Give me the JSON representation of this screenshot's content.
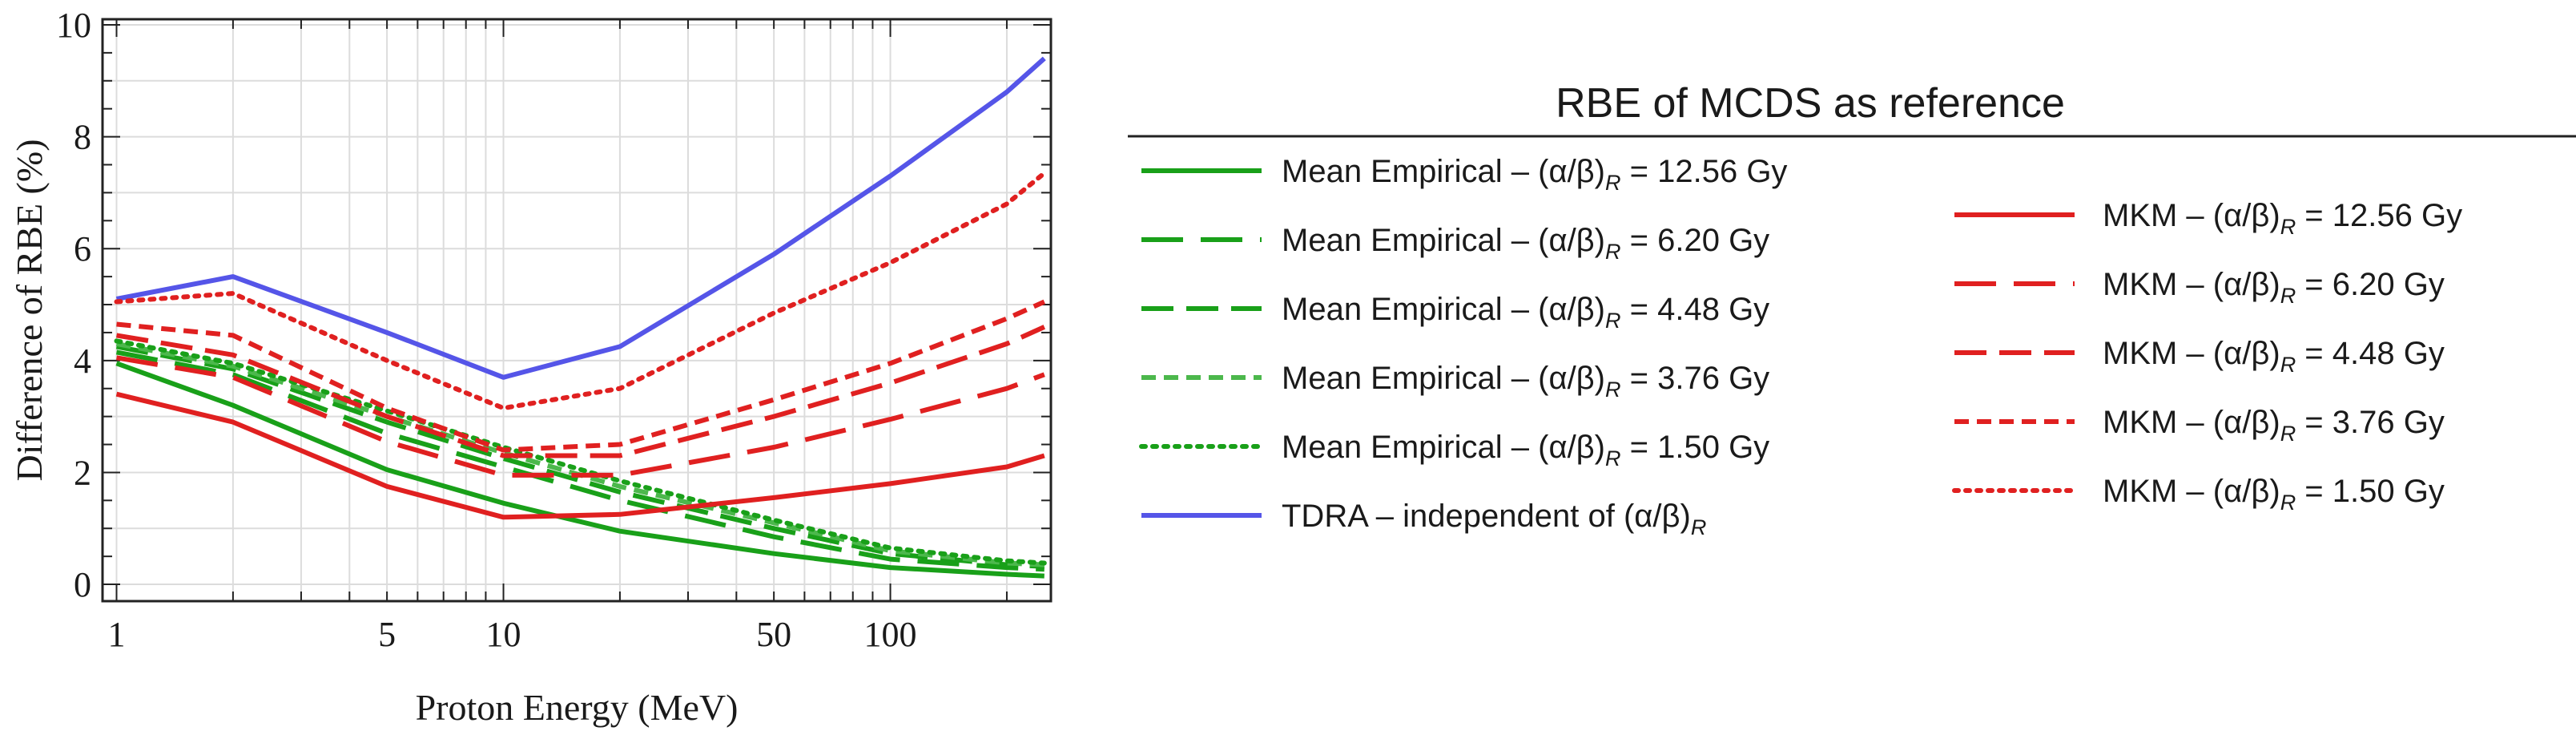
{
  "chart_data": {
    "type": "line",
    "title": "",
    "xlabel": "Proton Energy (MeV)",
    "ylabel": "Difference  of RBE (%)",
    "xscale": "log",
    "xlim": [
      0.92,
      260
    ],
    "ylim": [
      -0.3,
      10.1
    ],
    "xticks": [
      {
        "value": 1,
        "label": "1"
      },
      {
        "value": 5,
        "label": "5"
      },
      {
        "value": 10,
        "label": "10"
      },
      {
        "value": 50,
        "label": "50"
      },
      {
        "value": 100,
        "label": "100"
      }
    ],
    "yticks": [
      {
        "value": 0,
        "label": "0"
      },
      {
        "value": 2,
        "label": "2"
      },
      {
        "value": 4,
        "label": "4"
      },
      {
        "value": 6,
        "label": "6"
      },
      {
        "value": 8,
        "label": "8"
      },
      {
        "value": 10,
        "label": "10"
      }
    ],
    "grid": true,
    "legend_title": "RBE of MCDS as reference",
    "legend_placement": "right",
    "x": [
      1,
      2,
      5,
      10,
      20,
      50,
      100,
      200,
      250
    ],
    "series": [
      {
        "name": "ME 12.56",
        "label_prefix": "Mean Empirical – (α/β)",
        "label_sub": "R",
        "label_suffix": " = 12.56 Gy",
        "color": "#19a019",
        "dash": "solid",
        "legend_column": "left",
        "values": [
          3.95,
          3.2,
          2.05,
          1.45,
          0.95,
          0.55,
          0.3,
          0.18,
          0.15
        ]
      },
      {
        "name": "ME 6.20",
        "label_prefix": "Mean Empirical – (α/β)",
        "label_sub": "R",
        "label_suffix": " = 6.20 Gy",
        "color": "#19a019",
        "dash": "long",
        "legend_column": "left",
        "values": [
          4.15,
          3.75,
          2.7,
          2.1,
          1.5,
          0.85,
          0.45,
          0.3,
          0.27
        ]
      },
      {
        "name": "ME 4.48",
        "label_prefix": "Mean Empirical – (α/β)",
        "label_sub": "R",
        "label_suffix": " = 4.48 Gy",
        "color": "#19a019",
        "dash": "medium",
        "legend_column": "left",
        "values": [
          4.25,
          3.85,
          2.9,
          2.25,
          1.65,
          1.0,
          0.55,
          0.35,
          0.32
        ]
      },
      {
        "name": "ME 3.76",
        "label_prefix": "Mean Empirical – (α/β)",
        "label_sub": "R",
        "label_suffix": " = 3.76 Gy",
        "color": "#4cb84c",
        "dash": "short",
        "legend_column": "left",
        "values": [
          4.3,
          3.9,
          3.0,
          2.35,
          1.75,
          1.1,
          0.6,
          0.38,
          0.35
        ]
      },
      {
        "name": "ME 1.50",
        "label_prefix": "Mean Empirical – (α/β)",
        "label_sub": "R",
        "label_suffix": " = 1.50 Gy",
        "color": "#19a019",
        "dash": "dotted",
        "legend_column": "left",
        "values": [
          4.35,
          3.95,
          3.1,
          2.45,
          1.85,
          1.15,
          0.65,
          0.42,
          0.38
        ]
      },
      {
        "name": "TDRA",
        "label_prefix": "TDRA – independent of (α/β)",
        "label_sub": "R",
        "label_suffix": "",
        "color": "#5555e8",
        "dash": "solid",
        "legend_column": "left",
        "values": [
          5.1,
          5.5,
          4.5,
          3.7,
          4.25,
          5.9,
          7.3,
          8.8,
          9.4
        ]
      },
      {
        "name": "MKM 12.56",
        "label_prefix": "MKM – (α/β)",
        "label_sub": "R",
        "label_suffix": " = 12.56 Gy",
        "color": "#e02020",
        "dash": "solid",
        "legend_column": "right",
        "values": [
          3.4,
          2.9,
          1.75,
          1.2,
          1.25,
          1.55,
          1.8,
          2.1,
          2.3
        ]
      },
      {
        "name": "MKM 6.20",
        "label_prefix": "MKM – (α/β)",
        "label_sub": "R",
        "label_suffix": " = 6.20 Gy",
        "color": "#e02020",
        "dash": "long",
        "legend_column": "right",
        "values": [
          4.05,
          3.7,
          2.55,
          1.95,
          1.95,
          2.45,
          2.95,
          3.5,
          3.75
        ]
      },
      {
        "name": "MKM 4.48",
        "label_prefix": "MKM – (α/β)",
        "label_sub": "R",
        "label_suffix": " = 4.48 Gy",
        "color": "#e02020",
        "dash": "medium",
        "legend_column": "right",
        "values": [
          4.45,
          4.1,
          3.0,
          2.3,
          2.3,
          3.0,
          3.6,
          4.3,
          4.6
        ]
      },
      {
        "name": "MKM 3.76",
        "label_prefix": "MKM – (α/β)",
        "label_sub": "R",
        "label_suffix": " = 3.76 Gy",
        "color": "#e02020",
        "dash": "short",
        "legend_column": "right",
        "values": [
          4.65,
          4.45,
          3.15,
          2.4,
          2.5,
          3.3,
          3.95,
          4.75,
          5.05
        ]
      },
      {
        "name": "MKM 1.50",
        "label_prefix": "MKM – (α/β)",
        "label_sub": "R",
        "label_suffix": " = 1.50 Gy",
        "color": "#e02020",
        "dash": "dotted",
        "legend_column": "right",
        "values": [
          5.05,
          5.2,
          4.0,
          3.15,
          3.5,
          4.85,
          5.75,
          6.8,
          7.35
        ]
      }
    ]
  }
}
